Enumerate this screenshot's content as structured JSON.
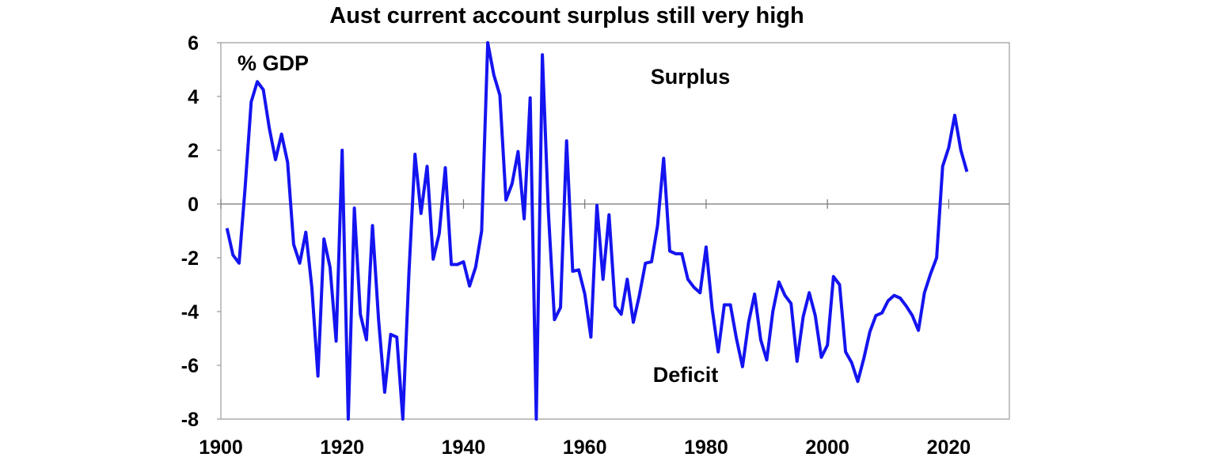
{
  "chart_data": {
    "type": "line",
    "title": "Aust current account surplus still very high",
    "ylabel": "% GDP",
    "xlabel": "",
    "xlim": [
      1900,
      2030
    ],
    "ylim": [
      -8,
      6
    ],
    "x_ticks": [
      1900,
      1920,
      1940,
      1960,
      1980,
      2000,
      2020
    ],
    "y_ticks": [
      6,
      4,
      2,
      0,
      -2,
      -4,
      -6,
      -8
    ],
    "grid": false,
    "zero_line": true,
    "annotations": [
      "Surplus",
      "Deficit"
    ],
    "series": [
      {
        "color": "#1414f0",
        "x": [
          1901,
          1902,
          1903,
          1904,
          1905,
          1906,
          1907,
          1908,
          1909,
          1910,
          1911,
          1912,
          1913,
          1914,
          1915,
          1916,
          1917,
          1918,
          1919,
          1920,
          1921,
          1922,
          1923,
          1924,
          1925,
          1926,
          1927,
          1928,
          1929,
          1930,
          1931,
          1932,
          1933,
          1934,
          1935,
          1936,
          1937,
          1938,
          1939,
          1940,
          1941,
          1942,
          1943,
          1944,
          1945,
          1946,
          1947,
          1948,
          1949,
          1950,
          1951,
          1952,
          1953,
          1954,
          1955,
          1956,
          1957,
          1958,
          1959,
          1960,
          1961,
          1962,
          1963,
          1964,
          1965,
          1966,
          1967,
          1968,
          1969,
          1970,
          1971,
          1972,
          1973,
          1974,
          1975,
          1976,
          1977,
          1978,
          1979,
          1980,
          1981,
          1982,
          1983,
          1984,
          1985,
          1986,
          1987,
          1988,
          1989,
          1990,
          1991,
          1992,
          1993,
          1994,
          1995,
          1996,
          1997,
          1998,
          1999,
          2000,
          2001,
          2002,
          2003,
          2004,
          2005,
          2006,
          2007,
          2008,
          2009,
          2010,
          2011,
          2012,
          2013,
          2014,
          2015,
          2016,
          2017,
          2018,
          2019,
          2020,
          2021,
          2022,
          2023
        ],
        "values": [
          -0.9,
          -1.9,
          -2.2,
          0.6,
          3.8,
          4.55,
          4.25,
          2.8,
          1.65,
          2.6,
          1.55,
          -1.5,
          -2.2,
          -1.05,
          -3.1,
          -6.4,
          -1.3,
          -2.35,
          -5.1,
          2.0,
          -8.0,
          -0.15,
          -4.1,
          -5.05,
          -0.8,
          -4.3,
          -7.0,
          -4.85,
          -4.95,
          -8.0,
          -2.6,
          1.85,
          -0.35,
          1.4,
          -2.05,
          -1.1,
          1.35,
          -2.25,
          -2.25,
          -2.15,
          -3.05,
          -2.35,
          -1.0,
          6.0,
          4.8,
          4.05,
          0.15,
          0.75,
          1.95,
          -0.55,
          3.95,
          -8.0,
          5.55,
          -0.3,
          -4.3,
          -3.85,
          2.35,
          -2.5,
          -2.45,
          -3.35,
          -4.95,
          -0.05,
          -2.8,
          -0.4,
          -3.8,
          -4.1,
          -2.8,
          -4.4,
          -3.4,
          -2.2,
          -2.15,
          -0.8,
          1.7,
          -1.75,
          -1.85,
          -1.85,
          -2.8,
          -3.1,
          -3.3,
          -1.6,
          -3.9,
          -5.5,
          -3.75,
          -3.75,
          -5.0,
          -6.05,
          -4.4,
          -3.35,
          -5.05,
          -5.8,
          -4.0,
          -2.9,
          -3.4,
          -3.7,
          -5.85,
          -4.2,
          -3.3,
          -4.15,
          -5.7,
          -5.25,
          -2.7,
          -3.0,
          -5.5,
          -5.9,
          -6.6,
          -5.75,
          -4.75,
          -4.15,
          -4.05,
          -3.6,
          -3.4,
          -3.5,
          -3.8,
          -4.15,
          -4.7,
          -3.3,
          -2.6,
          -2.0,
          1.4,
          2.1,
          3.3,
          2.0,
          1.2
        ]
      }
    ]
  }
}
